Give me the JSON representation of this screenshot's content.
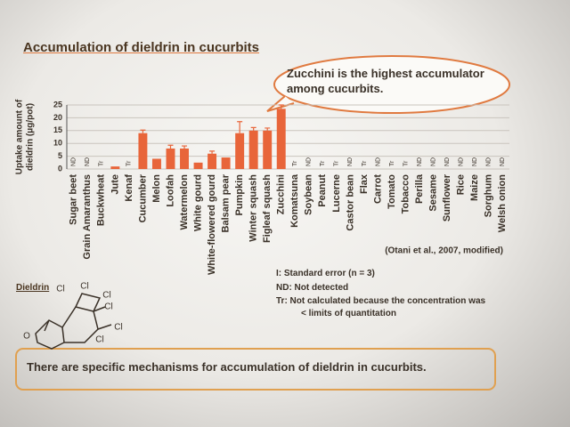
{
  "title": "Accumulation of dieldrin in cucurbits",
  "callout": "Zucchini is the highest accumulator among cucurbits.",
  "chart_data": {
    "type": "bar",
    "ylabel": [
      "Uptake amount of",
      "dieldrin (μg/pot)"
    ],
    "categories": [
      "Sugar beet",
      "Grain Amaranthus",
      "Buckwheat",
      "Jute",
      "Kenaf",
      "Cucumber",
      "Melon",
      "Loofah",
      "Watermelon",
      "White gourd",
      "White-flowered gourd",
      "Balsam pear",
      "Pumpkin",
      "Winter squash",
      "Figleaf squash",
      "Zucchini",
      "Komatsuna",
      "Soybean",
      "Peanut",
      "Lucerne",
      "Castor bean",
      "Flax",
      "Carrot",
      "Tomato",
      "Tobacco",
      "Perilla",
      "Sesame",
      "Sunflower",
      "Rice",
      "Maize",
      "Sorghum",
      "Welsh onion"
    ],
    "values": [
      null,
      null,
      null,
      1,
      null,
      14,
      4,
      8,
      8,
      2.5,
      6,
      4.5,
      14,
      15,
      15,
      23.5,
      null,
      null,
      null,
      null,
      null,
      null,
      null,
      null,
      null,
      null,
      null,
      null,
      null,
      null,
      null,
      null
    ],
    "errors": [
      null,
      null,
      null,
      null,
      null,
      1.2,
      null,
      1.3,
      1,
      null,
      1,
      null,
      4.5,
      1.2,
      1,
      1.5,
      null,
      null,
      null,
      null,
      null,
      null,
      null,
      null,
      null,
      null,
      null,
      null,
      null,
      null,
      null,
      null
    ],
    "value_labels": [
      "ND",
      "ND",
      "Tr",
      null,
      "Tr",
      null,
      null,
      null,
      null,
      null,
      null,
      null,
      null,
      null,
      null,
      null,
      "Tr",
      "ND",
      "Tr",
      "Tr",
      "ND",
      "Tr",
      "ND",
      "Tr",
      "Tr",
      "ND",
      "ND",
      "ND",
      "ND",
      "ND",
      "ND",
      "ND"
    ],
    "color": "#e8653a",
    "ylim": [
      0,
      25
    ],
    "yticks": [
      0,
      5,
      10,
      15,
      20,
      25
    ],
    "grid": true,
    "source": "(Otani et al., 2007, modified)"
  },
  "notes": [
    "I: Standard error (n = 3)",
    "ND: Not detected",
    "Tr: Not calculated because the concentration was",
    "< limits of quantitation"
  ],
  "structure": {
    "name": "Dieldrin",
    "atoms": [
      "Cl",
      "Cl",
      "Cl",
      "Cl",
      "Cl",
      "Cl",
      "O"
    ]
  },
  "conclusion": "There are specific mechanisms for accumulation of dieldrin in cucurbits."
}
